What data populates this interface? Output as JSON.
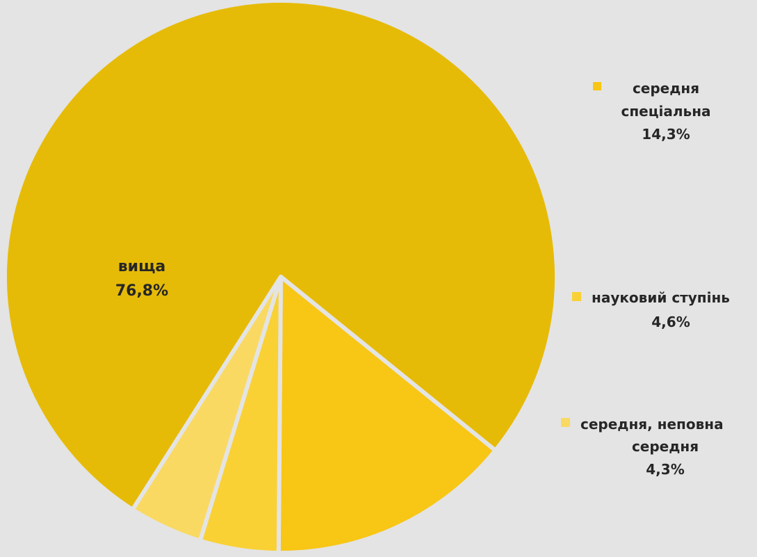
{
  "chart_data": {
    "type": "pie",
    "title": "",
    "slices": [
      {
        "label": "вища",
        "value": 76.8,
        "value_label": "76,8%",
        "color": "#e6bb08"
      },
      {
        "label": "середня спеціальна",
        "value": 14.3,
        "value_label": "14,3%",
        "color": "#f8c614"
      },
      {
        "label": "науковий ступінь",
        "value": 4.6,
        "value_label": "4,6%",
        "color": "#f9d135"
      },
      {
        "label": "середня, неповна середня",
        "value": 4.3,
        "value_label": "4,3%",
        "color": "#f9d961"
      }
    ],
    "legend": "inline-right"
  }
}
